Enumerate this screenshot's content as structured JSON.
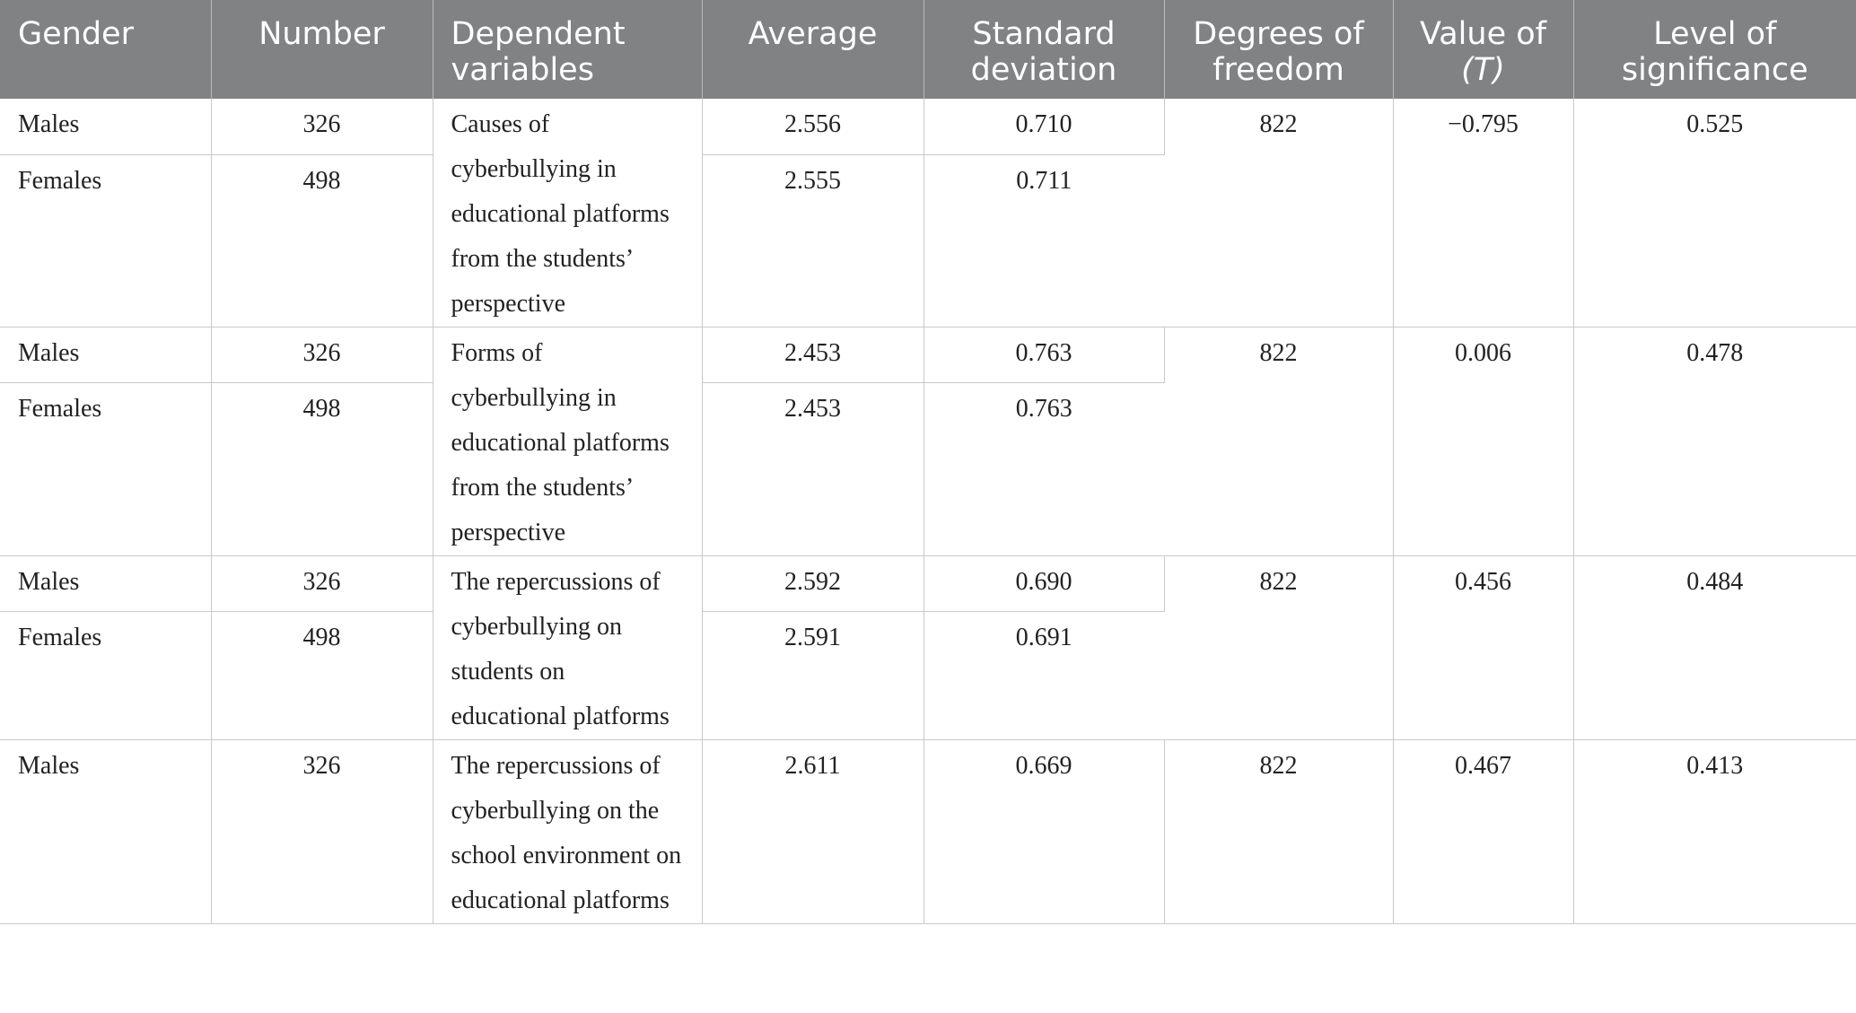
{
  "table": {
    "headers": [
      {
        "label": "Gender",
        "align": "left"
      },
      {
        "label": "Number",
        "align": "center"
      },
      {
        "label": "Dependent variables",
        "align": "left"
      },
      {
        "label": "Average",
        "align": "center"
      },
      {
        "label": "Standard deviation",
        "align": "center"
      },
      {
        "label": "Degrees of freedom",
        "align": "center"
      },
      {
        "label_prefix": "Value of",
        "label_italic": "(T)",
        "align": "center"
      },
      {
        "label": "Level of significance",
        "align": "center"
      }
    ],
    "groups": [
      {
        "variable": "Causes of cyberbullying in educational platforms from the students’ perspective",
        "df": "822",
        "t": "−0.795",
        "sig": "0.525",
        "rows": [
          {
            "gender": "Males",
            "number": "326",
            "average": "2.556",
            "sd": "0.710"
          },
          {
            "gender": "Females",
            "number": "498",
            "average": "2.555",
            "sd": "0.711"
          }
        ]
      },
      {
        "variable": "Forms of cyberbullying in educational platforms from the students’ perspective",
        "df": "822",
        "t": "0.006",
        "sig": "0.478",
        "rows": [
          {
            "gender": "Males",
            "number": "326",
            "average": "2.453",
            "sd": "0.763"
          },
          {
            "gender": "Females",
            "number": "498",
            "average": "2.453",
            "sd": "0.763"
          }
        ]
      },
      {
        "variable": "The repercussions of cyberbullying on students on educational platforms",
        "df": "822",
        "t": "0.456",
        "sig": "0.484",
        "rows": [
          {
            "gender": "Males",
            "number": "326",
            "average": "2.592",
            "sd": "0.690"
          },
          {
            "gender": "Females",
            "number": "498",
            "average": "2.591",
            "sd": "0.691"
          }
        ]
      },
      {
        "variable": "The repercussions of cyberbullying on the school environment on educational platforms",
        "df": "822",
        "t": "0.467",
        "sig": "0.413",
        "rows": [
          {
            "gender": "Males",
            "number": "326",
            "average": "2.611",
            "sd": "0.669"
          }
        ]
      }
    ]
  }
}
